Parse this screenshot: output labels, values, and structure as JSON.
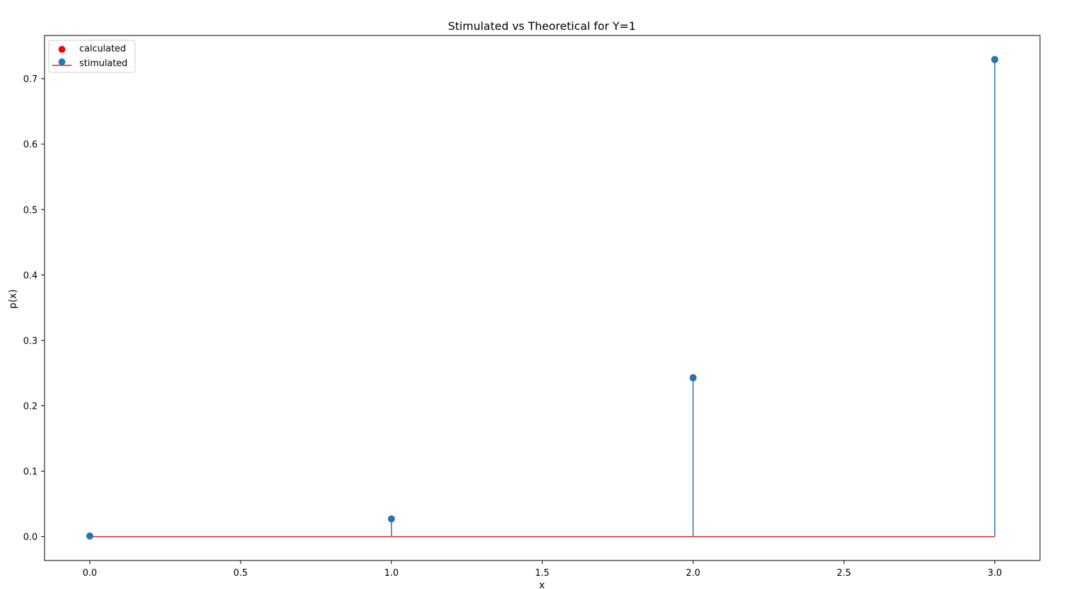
{
  "chart_data": {
    "type": "stem",
    "title": "Stimulated vs Theoretical for Y=1",
    "xlabel": "x",
    "ylabel": "p(x)",
    "xlim": [
      -0.15,
      3.15
    ],
    "ylim": [
      -0.0365,
      0.766
    ],
    "xticks": [
      0.0,
      0.5,
      1.0,
      1.5,
      2.0,
      2.5,
      3.0
    ],
    "xtick_labels": [
      "0.0",
      "0.5",
      "1.0",
      "1.5",
      "2.0",
      "2.5",
      "3.0"
    ],
    "yticks": [
      0.0,
      0.1,
      0.2,
      0.3,
      0.4,
      0.5,
      0.6,
      0.7
    ],
    "ytick_labels": [
      "0.0",
      "0.1",
      "0.2",
      "0.3",
      "0.4",
      "0.5",
      "0.6",
      "0.7"
    ],
    "legend_position": "upper-left",
    "series": [
      {
        "name": "calculated",
        "kind": "scatter",
        "color": "#ff0000",
        "x": [
          0,
          1,
          2,
          3
        ],
        "values": [
          0.001,
          0.027,
          0.243,
          0.729
        ]
      },
      {
        "name": "stimulated",
        "kind": "stem",
        "color": "#1f77b4",
        "baseline_color": "#d62728",
        "x": [
          0,
          1,
          2,
          3
        ],
        "values": [
          0.0008,
          0.0272,
          0.2425,
          0.7295
        ]
      }
    ]
  }
}
